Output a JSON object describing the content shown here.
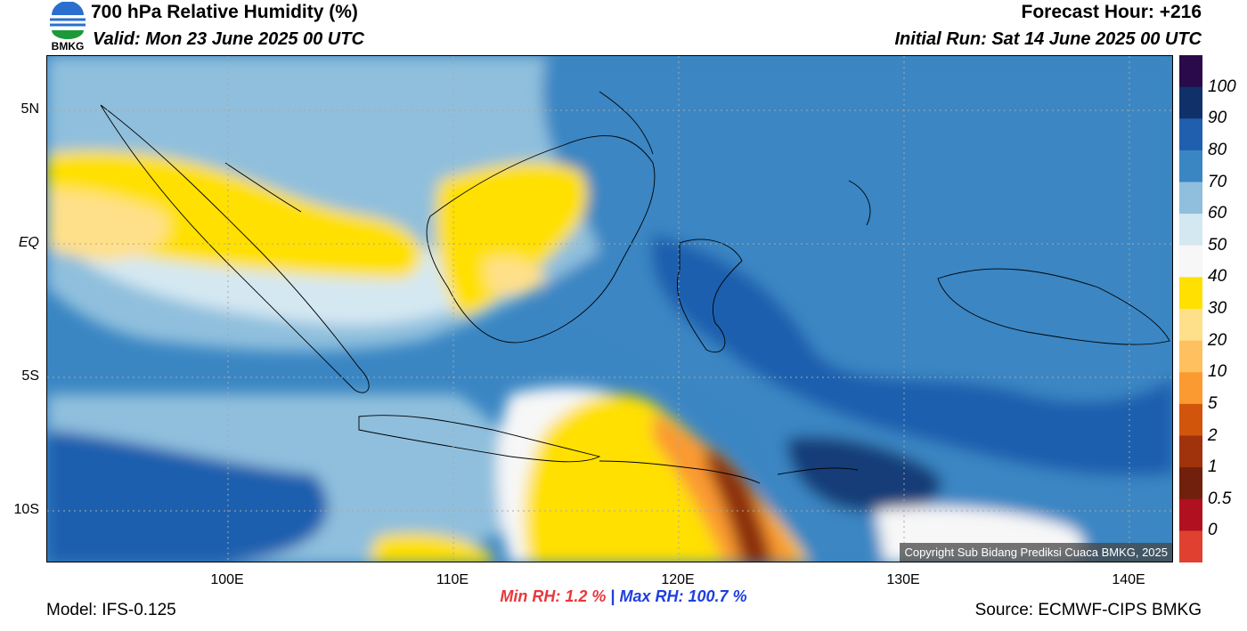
{
  "header": {
    "title": "700 hPa Relative Humidity (%)",
    "valid": "Valid: Mon 23 June 2025 00 UTC",
    "forecast_hour": "Forecast Hour: +216",
    "initial_run": "Initial Run: Sat 14 June 2025 00 UTC",
    "logo_text": "BMKG"
  },
  "axes": {
    "lat_labels": [
      "5N",
      "EQ",
      "5S",
      "10S"
    ],
    "lon_labels": [
      "100E",
      "110E",
      "120E",
      "130E",
      "140E"
    ]
  },
  "stats": {
    "min": "Min RH:   1.2 %",
    "separator": "|",
    "max": "Max RH: 100.7 %"
  },
  "footer": {
    "model": "Model: IFS-0.125",
    "source": "Source: ECMWF-CIPS BMKG",
    "copyright": "Copyright Sub Bidang Prediksi Cuaca BMKG, 2025"
  },
  "colorbar": {
    "labels": [
      "100",
      "90",
      "80",
      "70",
      "60",
      "50",
      "40",
      "30",
      "20",
      "10",
      "5",
      "2",
      "1",
      "0.5",
      "0"
    ],
    "colors": [
      "#2a0a4a",
      "#10306a",
      "#1f5fae",
      "#3a86c3",
      "#8fbfdd",
      "#d4e8f2",
      "#f7f7f7",
      "#ffe000",
      "#ffe08a",
      "#ffc060",
      "#fa9a30",
      "#d2550c",
      "#a0320c",
      "#70200c",
      "#b01020",
      "#e04030"
    ]
  },
  "map": {
    "colors": {
      "dark_navy": "#123c78",
      "dark_blue": "#1f5fae",
      "mid_blue": "#3a86c3",
      "light_blue": "#8fbfdd",
      "pale_blue": "#d4e8f2",
      "white": "#f7f7f7",
      "yellow": "#ffe000",
      "tan": "#ffe08a",
      "orange": "#fa9a30",
      "dark_orange": "#d2550c",
      "brown": "#8b2d0a"
    }
  }
}
